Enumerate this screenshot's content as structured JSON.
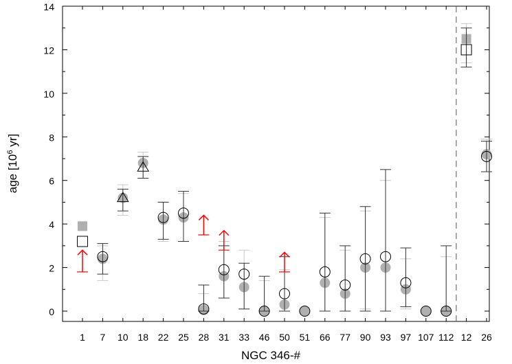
{
  "chart_data": {
    "type": "scatter",
    "xlabel": "NGC 346-#",
    "ylabel_main": "age [10",
    "ylabel_sup": "6",
    "ylabel_tail": " yr]",
    "ylim": [
      0,
      14
    ],
    "yticks": [
      0,
      2,
      4,
      6,
      8,
      10,
      12,
      14
    ],
    "categories": [
      "1",
      "7",
      "10",
      "18",
      "22",
      "25",
      "28",
      "31",
      "33",
      "46",
      "50",
      "51",
      "66",
      "77",
      "90",
      "93",
      "97",
      "107",
      "112",
      "12",
      "26"
    ],
    "separator_after": "112",
    "colors": {
      "gray_marker": "#b0b0b0",
      "gray_errorbar": "#c8c8c8",
      "dark_errorbar": "#333333",
      "lower_limit": "#ff0000",
      "separator": "#555555"
    },
    "series": [
      {
        "marker": "gray filled circle / square",
        "points": [
          {
            "cat": "1",
            "y": 3.9,
            "shape": "square"
          },
          {
            "cat": "7",
            "y": 2.4,
            "lo": 1.4,
            "hi": 3.0
          },
          {
            "cat": "10",
            "y": 5.2,
            "lo": 4.4,
            "hi": 5.8
          },
          {
            "cat": "18",
            "y": 6.8,
            "lo": 6.1,
            "hi": 7.3
          },
          {
            "cat": "22",
            "y": 4.2,
            "lo": 3.2,
            "hi": 5.0
          },
          {
            "cat": "25",
            "y": 4.3,
            "lo": 3.2,
            "hi": 5.4
          },
          {
            "cat": "28",
            "y": 0.05,
            "lo": 0.0,
            "hi": 0.8
          },
          {
            "cat": "31",
            "y": 1.6,
            "lo": 0.6,
            "hi": 3.2
          },
          {
            "cat": "33",
            "y": 1.1,
            "lo": 0.1,
            "hi": 2.8
          },
          {
            "cat": "46",
            "y": 0.0,
            "lo": 0.0,
            "hi": 1.4
          },
          {
            "cat": "50",
            "y": 0.3,
            "lo": 0.0,
            "hi": 1.9
          },
          {
            "cat": "51",
            "y": 0.0
          },
          {
            "cat": "66",
            "y": 1.3,
            "lo": 0.0,
            "hi": 4.3
          },
          {
            "cat": "77",
            "y": 0.8,
            "lo": 0.0,
            "hi": 2.8
          },
          {
            "cat": "90",
            "y": 2.0,
            "lo": 0.1,
            "hi": 4.6
          },
          {
            "cat": "93",
            "y": 2.0,
            "lo": 0.0,
            "hi": 6.0
          },
          {
            "cat": "97",
            "y": 1.0,
            "lo": 0.1,
            "hi": 2.4
          },
          {
            "cat": "107",
            "y": 0.0
          },
          {
            "cat": "112",
            "y": 0.0,
            "lo": 0.0,
            "hi": 2.5
          },
          {
            "cat": "12",
            "y": 12.5,
            "lo": 11.4,
            "hi": 13.2,
            "shape": "square"
          },
          {
            "cat": "26",
            "y": 7.2,
            "lo": 6.4,
            "hi": 7.9
          }
        ]
      },
      {
        "marker": "open circle / triangle / square",
        "points": [
          {
            "cat": "1",
            "y": 3.2,
            "shape": "square"
          },
          {
            "cat": "7",
            "y": 2.5,
            "lo": 1.7,
            "hi": 3.1
          },
          {
            "cat": "10",
            "y": 5.2,
            "lo": 4.6,
            "hi": 5.6,
            "shape": "triangle"
          },
          {
            "cat": "18",
            "y": 6.6,
            "lo": 6.1,
            "hi": 7.1,
            "shape": "triangle"
          },
          {
            "cat": "22",
            "y": 4.3,
            "lo": 3.3,
            "hi": 5.0
          },
          {
            "cat": "25",
            "y": 4.5,
            "lo": 3.2,
            "hi": 5.5
          },
          {
            "cat": "28",
            "y": 0.1,
            "lo": 0.0,
            "hi": 1.2
          },
          {
            "cat": "31",
            "y": 1.9,
            "lo": 0.6,
            "hi": 3.0
          },
          {
            "cat": "33",
            "y": 1.7,
            "lo": 0.1,
            "hi": 2.2
          },
          {
            "cat": "46",
            "y": 0.0,
            "lo": 0.0,
            "hi": 1.6
          },
          {
            "cat": "50",
            "y": 0.8,
            "lo": 0.0,
            "hi": 2.5
          },
          {
            "cat": "51",
            "y": 0.0
          },
          {
            "cat": "66",
            "y": 1.8,
            "lo": 0.0,
            "hi": 4.5
          },
          {
            "cat": "77",
            "y": 1.2,
            "lo": 0.0,
            "hi": 3.0
          },
          {
            "cat": "90",
            "y": 2.4,
            "lo": 0.0,
            "hi": 4.8
          },
          {
            "cat": "93",
            "y": 2.5,
            "lo": 0.0,
            "hi": 6.5
          },
          {
            "cat": "97",
            "y": 1.3,
            "lo": 0.2,
            "hi": 2.9
          },
          {
            "cat": "107",
            "y": 0.0
          },
          {
            "cat": "112",
            "y": 0.0,
            "lo": 0.0,
            "hi": 3.0
          },
          {
            "cat": "12",
            "y": 12.0,
            "lo": 11.2,
            "hi": 13.0,
            "shape": "square"
          },
          {
            "cat": "26",
            "y": 7.1,
            "lo": 6.4,
            "hi": 7.8
          }
        ]
      }
    ],
    "lower_limits": [
      {
        "cat": "1",
        "y": 1.8,
        "top": 2.8
      },
      {
        "cat": "28",
        "y": 3.5,
        "top": 4.4
      },
      {
        "cat": "31",
        "y": 2.8,
        "top": 3.7
      },
      {
        "cat": "50",
        "y": 1.8,
        "top": 2.7
      }
    ]
  }
}
